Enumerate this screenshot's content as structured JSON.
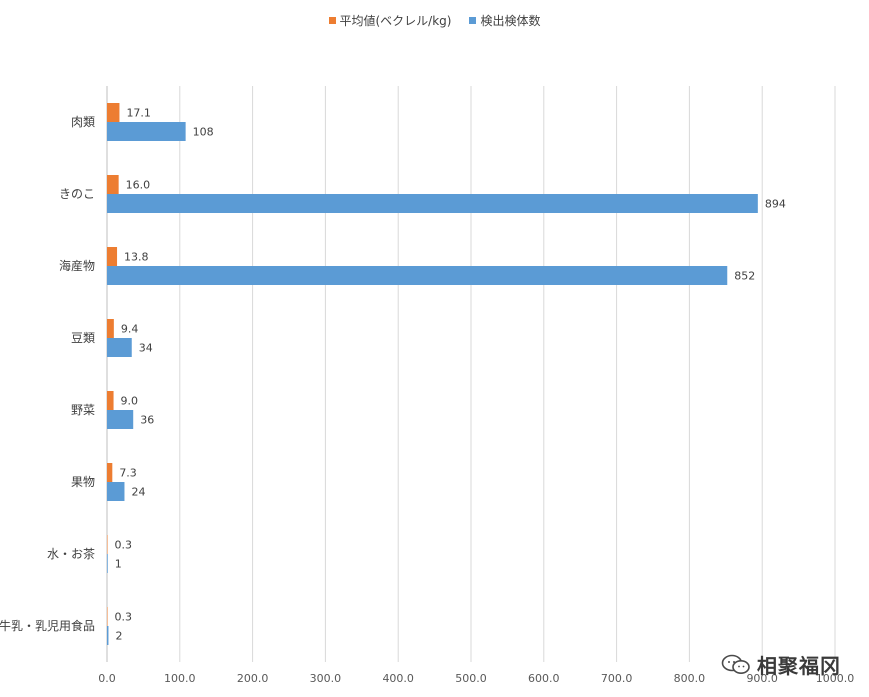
{
  "chart_data": {
    "type": "bar",
    "orientation": "horizontal",
    "categories": [
      "肉類",
      "きのこ",
      "海産物",
      "豆類",
      "野菜",
      "果物",
      "水・お茶",
      "牛乳・乳児用食品"
    ],
    "series": [
      {
        "name": "平均値(ベクレル/kg)",
        "color": "#ED7D31",
        "values": [
          17.1,
          16.0,
          13.8,
          9.4,
          9.0,
          7.3,
          0.3,
          0.3
        ],
        "labels": [
          "17.1",
          "16.0",
          "13.8",
          "9.4",
          "9.0",
          "7.3",
          "0.3",
          "0.3"
        ]
      },
      {
        "name": "検出検体数",
        "color": "#5B9BD5",
        "values": [
          108,
          894,
          852,
          34,
          36,
          24,
          1,
          2
        ],
        "labels": [
          "108",
          "894",
          "852",
          "34",
          "36",
          "24",
          "1",
          "2"
        ]
      }
    ],
    "xlim": [
      0,
      1000
    ],
    "xticks": [
      0,
      100,
      200,
      300,
      400,
      500,
      600,
      700,
      800,
      900,
      1000
    ],
    "xtick_labels": [
      "0.0",
      "100.0",
      "200.0",
      "300.0",
      "400.0",
      "500.0",
      "600.0",
      "700.0",
      "800.0",
      "900.0",
      "1000.0"
    ],
    "grid": true,
    "legend_position": "top"
  },
  "watermark": {
    "text": "相聚福冈",
    "icon": "chat-bubbles-icon"
  }
}
